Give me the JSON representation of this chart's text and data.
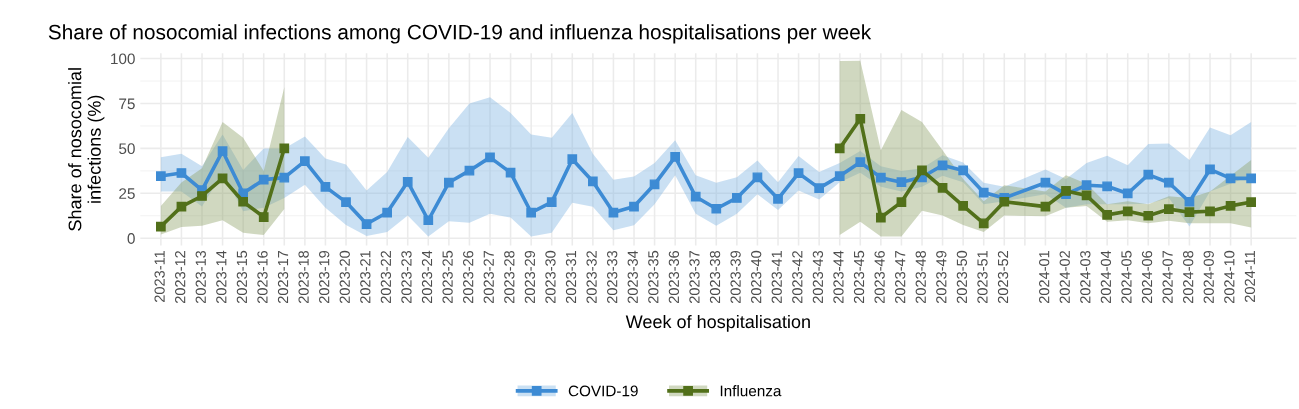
{
  "chart_data": {
    "type": "line",
    "title": "Share of nosocomial infections among COVID-19 and influenza hospitalisations per week",
    "xlabel": "Week of hospitalisation",
    "ylabel": "Share of nosocomial\ninfections (%)",
    "categories": [
      "2023-11",
      "2023-12",
      "2023-13",
      "2023-14",
      "2023-15",
      "2023-16",
      "2023-17",
      "2023-18",
      "2023-19",
      "2023-20",
      "2023-21",
      "2023-22",
      "2023-23",
      "2023-24",
      "2023-25",
      "2023-26",
      "2023-27",
      "2023-28",
      "2023-29",
      "2023-30",
      "2023-31",
      "2023-32",
      "2023-33",
      "2023-34",
      "2023-35",
      "2023-36",
      "2023-37",
      "2023-38",
      "2023-39",
      "2023-40",
      "2023-41",
      "2023-42",
      "2023-43",
      "2023-44",
      "2023-45",
      "2023-46",
      "2023-47",
      "2023-48",
      "2023-49",
      "2023-50",
      "2023-51",
      "2023-52",
      null,
      "2024-01",
      "2024-02",
      "2024-03",
      "2024-04",
      "2024-05",
      "2024-06",
      "2024-07",
      "2024-08",
      "2024-09",
      "2024-10",
      "2024-11"
    ],
    "series": [
      {
        "name": "COVID-19",
        "color": "#3d8bd4",
        "values": [
          34.6,
          36.3,
          26.8,
          48.5,
          25,
          32.6,
          33.7,
          42.9,
          28.6,
          20.1,
          7.9,
          14.3,
          31.4,
          10,
          31,
          37.6,
          45,
          36.5,
          14.3,
          20.1,
          44,
          31.6,
          14.3,
          17.6,
          30,
          45.3,
          23.1,
          16.4,
          22.4,
          33.9,
          21.9,
          36.2,
          27.9,
          34.6,
          42.3,
          33.7,
          31.2,
          33.9,
          40.6,
          37.7,
          25.4,
          22.4,
          null,
          30.9,
          24.5,
          29.5,
          28.9,
          24.9,
          35.4,
          30.9,
          20.3,
          38.3,
          33.3,
          33.3
        ],
        "lower": [
          26,
          26,
          17.6,
          36.5,
          15,
          17,
          22.4,
          29.8,
          17,
          7.4,
          1.2,
          3.4,
          12.7,
          0.9,
          9.5,
          8.6,
          13.6,
          11.5,
          0.9,
          3,
          19.8,
          17.5,
          4.4,
          7.2,
          18.9,
          35.1,
          13.6,
          7,
          13.6,
          24.5,
          15.7,
          26.6,
          21.5,
          31.2,
          36.5,
          28.6,
          26,
          28.6,
          34.7,
          31.2,
          18.9,
          20.6,
          null,
          24.5,
          17,
          18.9,
          18.9,
          18.9,
          19.2,
          22.4,
          6.5,
          26,
          30.3,
          34.7
        ],
        "upper": [
          45,
          47,
          40,
          57.7,
          38,
          50,
          50,
          56.6,
          44.4,
          41,
          26.6,
          36.9,
          56.4,
          44.8,
          61.2,
          75,
          78.5,
          69.7,
          57.7,
          55.9,
          69.7,
          47,
          32.6,
          34.4,
          41.8,
          54.5,
          35.1,
          30.9,
          33.9,
          43.2,
          31.2,
          45.7,
          36.9,
          41.8,
          48.5,
          40,
          37.4,
          39,
          46.2,
          42.2,
          30.9,
          28.6,
          null,
          38.3,
          33,
          41.8,
          45.9,
          40.6,
          52.4,
          52.7,
          43.6,
          61.6,
          57.3,
          64.7
        ]
      },
      {
        "name": "Influenza",
        "color": "#52701a",
        "values": [
          6.5,
          17.6,
          23.5,
          33.3,
          20.3,
          11.8,
          50,
          null,
          null,
          null,
          null,
          null,
          null,
          null,
          null,
          null,
          null,
          null,
          null,
          null,
          null,
          null,
          null,
          null,
          null,
          null,
          null,
          null,
          null,
          null,
          null,
          null,
          null,
          50,
          66.5,
          11.5,
          20.1,
          37.7,
          28,
          18,
          8.3,
          20.3,
          null,
          17.6,
          26.3,
          23.8,
          13,
          15,
          12.5,
          16.2,
          14.5,
          15,
          18,
          20.1
        ],
        "lower": [
          2,
          6.2,
          6.9,
          10,
          3,
          1.8,
          16.2,
          null,
          null,
          null,
          null,
          null,
          null,
          null,
          null,
          null,
          null,
          null,
          null,
          null,
          null,
          null,
          null,
          null,
          null,
          null,
          null,
          null,
          null,
          null,
          null,
          null,
          null,
          1.8,
          9.2,
          0.9,
          0.9,
          15.3,
          12.7,
          7.4,
          3.4,
          12.7,
          null,
          12.2,
          17,
          18,
          9.2,
          10,
          8.3,
          9.7,
          8.3,
          8.3,
          8.3,
          6
        ],
        "upper": [
          18,
          31,
          39,
          64.7,
          55.9,
          37.4,
          84,
          null,
          null,
          null,
          null,
          null,
          null,
          null,
          null,
          null,
          null,
          null,
          null,
          null,
          null,
          null,
          null,
          null,
          null,
          null,
          null,
          null,
          null,
          null,
          null,
          null,
          null,
          98.6,
          98.8,
          48.9,
          71.4,
          64.7,
          48.9,
          33,
          20.6,
          29.5,
          null,
          26,
          35.1,
          30.3,
          18.9,
          20.6,
          18.9,
          23.3,
          22.4,
          26,
          34.7,
          43.6
        ]
      }
    ],
    "ylim": [
      -4,
      103
    ],
    "yticks": [
      0,
      25,
      50,
      75,
      100
    ],
    "grid": true,
    "legend": "bottom",
    "marker": "square",
    "line_style": "solid"
  }
}
